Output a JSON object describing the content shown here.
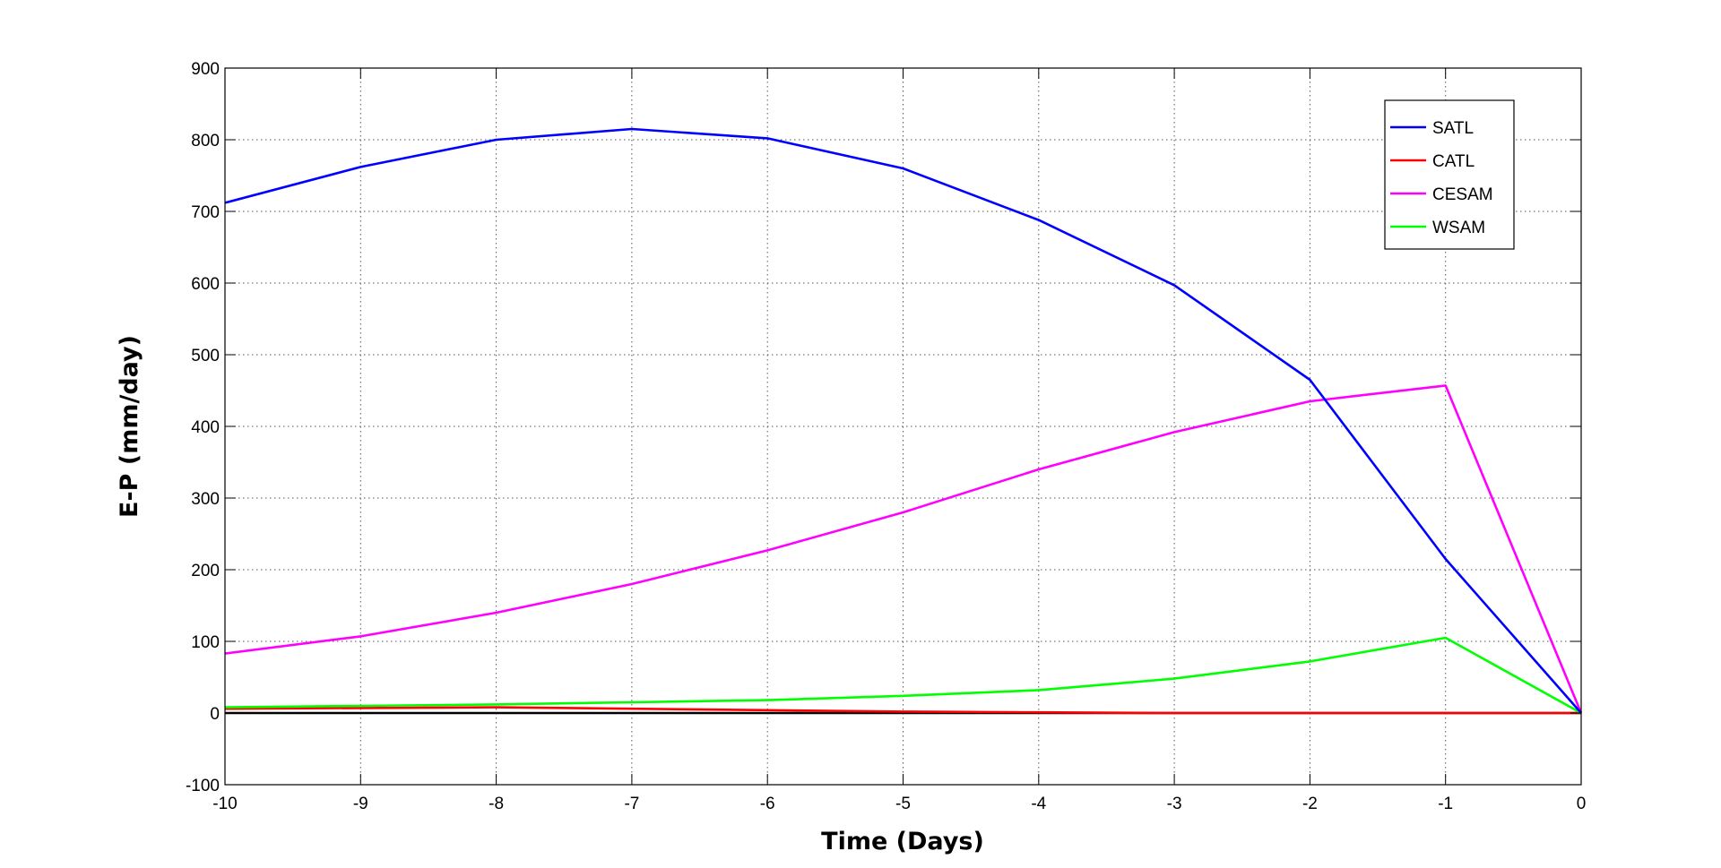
{
  "chart_data": {
    "type": "line",
    "title": "",
    "xlabel": "Time (Days)",
    "ylabel": "E-P (mm/day)",
    "xlim": [
      -10,
      0
    ],
    "ylim": [
      -100,
      900
    ],
    "xticks": [
      -10,
      -9,
      -8,
      -7,
      -6,
      -5,
      -4,
      -3,
      -2,
      -1,
      0
    ],
    "yticks": [
      -100,
      0,
      100,
      200,
      300,
      400,
      500,
      600,
      700,
      800,
      900
    ],
    "grid": true,
    "legend_position": "top-right",
    "x": [
      -10,
      -9,
      -8,
      -7,
      -6,
      -5,
      -4,
      -3,
      -2,
      -1,
      0
    ],
    "series": [
      {
        "name": "SATL",
        "color": "#0000ff",
        "values": [
          712,
          762,
          800,
          815,
          802,
          760,
          688,
          597,
          465,
          215,
          0
        ]
      },
      {
        "name": "CATL",
        "color": "#ff0000",
        "values": [
          6,
          7,
          8,
          6,
          4,
          2,
          1,
          0,
          0,
          0,
          0
        ]
      },
      {
        "name": "CESAM",
        "color": "#ff00ff",
        "values": [
          83,
          107,
          140,
          180,
          227,
          280,
          340,
          392,
          435,
          457,
          0
        ]
      },
      {
        "name": "WSAM",
        "color": "#00ff00",
        "values": [
          8,
          10,
          12,
          15,
          18,
          24,
          32,
          48,
          72,
          105,
          0
        ]
      }
    ],
    "reference_line": {
      "y": 0,
      "color": "#000000"
    }
  }
}
